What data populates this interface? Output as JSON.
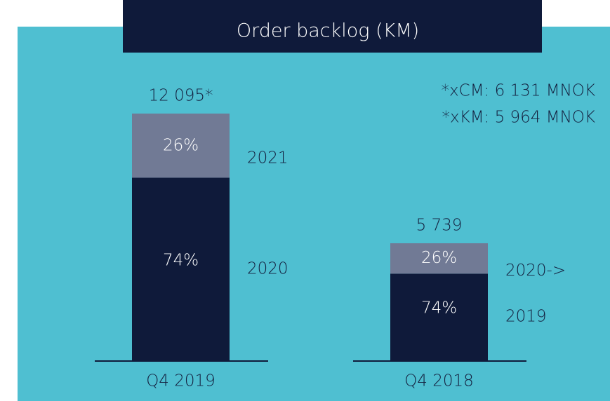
{
  "chart_data": {
    "type": "stacked-bar",
    "title": "Order backlog (KM)",
    "notes": [
      "*xCM: 6 131 MNOK",
      "*xKM: 5 964 MNOK"
    ],
    "bars": [
      {
        "category": "Q4 2019",
        "total": 12095,
        "total_label": "12 095*",
        "segments": [
          {
            "name": "2020",
            "value": 74,
            "value_label": "74%",
            "color": "#0f1a3a"
          },
          {
            "name": "2021",
            "value": 26,
            "value_label": "26%",
            "color": "#717a95"
          }
        ]
      },
      {
        "category": "Q4 2018",
        "total": 5739,
        "total_label": "5 739",
        "segments": [
          {
            "name": "2019",
            "value": 74,
            "value_label": "74%",
            "color": "#0f1a3a"
          },
          {
            "name": "2020->",
            "value": 26,
            "value_label": "26%",
            "color": "#717a95"
          }
        ]
      }
    ]
  }
}
